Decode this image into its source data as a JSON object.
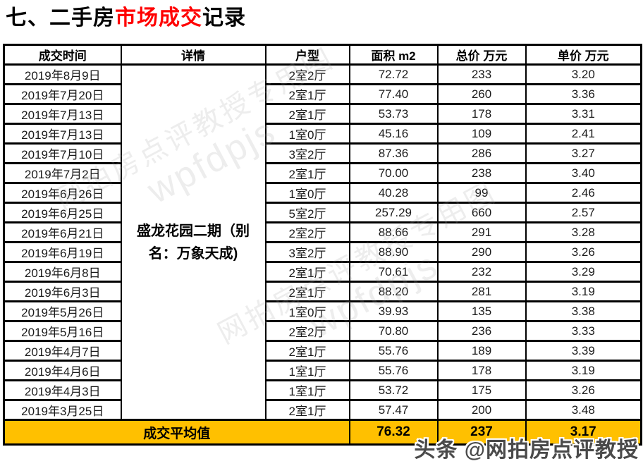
{
  "title": {
    "prefix": "七、二手房",
    "highlight": "市场成交",
    "suffix": "记录"
  },
  "table": {
    "headers": [
      "成交时间",
      "详情",
      "户型",
      "面积 m2",
      "总价 万元",
      "单价 万元"
    ],
    "detail_merged": "盛龙花园二期（别名：万象天成)",
    "rows": [
      {
        "date": "2019年8月9日",
        "type": "2室2厅",
        "area": "72.72",
        "total": "233",
        "unit": "3.20"
      },
      {
        "date": "2019年7月20日",
        "type": "2室1厅",
        "area": "77.40",
        "total": "260",
        "unit": "3.36"
      },
      {
        "date": "2019年7月13日",
        "type": "2室1厅",
        "area": "53.73",
        "total": "178",
        "unit": "3.31"
      },
      {
        "date": "2019年7月13日",
        "type": "1室0厅",
        "area": "45.16",
        "total": "109",
        "unit": "2.41"
      },
      {
        "date": "2019年7月10日",
        "type": "3室2厅",
        "area": "87.36",
        "total": "286",
        "unit": "3.27"
      },
      {
        "date": "2019年7月2日",
        "type": "2室1厅",
        "area": "70.00",
        "total": "238",
        "unit": "3.40"
      },
      {
        "date": "2019年6月26日",
        "type": "1室0厅",
        "area": "40.28",
        "total": "99",
        "unit": "2.46"
      },
      {
        "date": "2019年6月25日",
        "type": "5室2厅",
        "area": "257.29",
        "total": "660",
        "unit": "2.57"
      },
      {
        "date": "2019年6月21日",
        "type": "2室2厅",
        "area": "88.66",
        "total": "291",
        "unit": "3.28"
      },
      {
        "date": "2019年6月19日",
        "type": "3室2厅",
        "area": "88.90",
        "total": "290",
        "unit": "3.26"
      },
      {
        "date": "2019年6月8日",
        "type": "2室1厅",
        "area": "70.61",
        "total": "232",
        "unit": "3.29"
      },
      {
        "date": "2019年6月3日",
        "type": "2室1厅",
        "area": "88.20",
        "total": "281",
        "unit": "3.19"
      },
      {
        "date": "2019年5月26日",
        "type": "1室0厅",
        "area": "39.93",
        "total": "135",
        "unit": "3.38"
      },
      {
        "date": "2019年5月16日",
        "type": "2室2厅",
        "area": "70.80",
        "total": "236",
        "unit": "3.33"
      },
      {
        "date": "2019年4月7日",
        "type": "2室1厅",
        "area": "55.76",
        "total": "189",
        "unit": "3.39"
      },
      {
        "date": "2019年4月6日",
        "type": "1室1厅",
        "area": "55.76",
        "total": "178",
        "unit": "3.19"
      },
      {
        "date": "2019年4月3日",
        "type": "1室1厅",
        "area": "53.72",
        "total": "175",
        "unit": "3.26"
      },
      {
        "date": "2019年3月25日",
        "type": "2室1厅",
        "area": "57.47",
        "total": "200",
        "unit": "3.48"
      }
    ],
    "average": {
      "label": "成交平均值",
      "area": "76.32",
      "total": "237",
      "unit": "3.17"
    }
  },
  "watermarks": {
    "diagonal_cn": "网拍房点评教授专用图",
    "diagonal_en": "wpfdpjs",
    "corner": "头条 @网拍房点评教授"
  },
  "colors": {
    "title_red": "#ff0000",
    "average_row_bg": "#FFC000",
    "watermark_gray": "rgba(158,158,158,0.42)"
  }
}
